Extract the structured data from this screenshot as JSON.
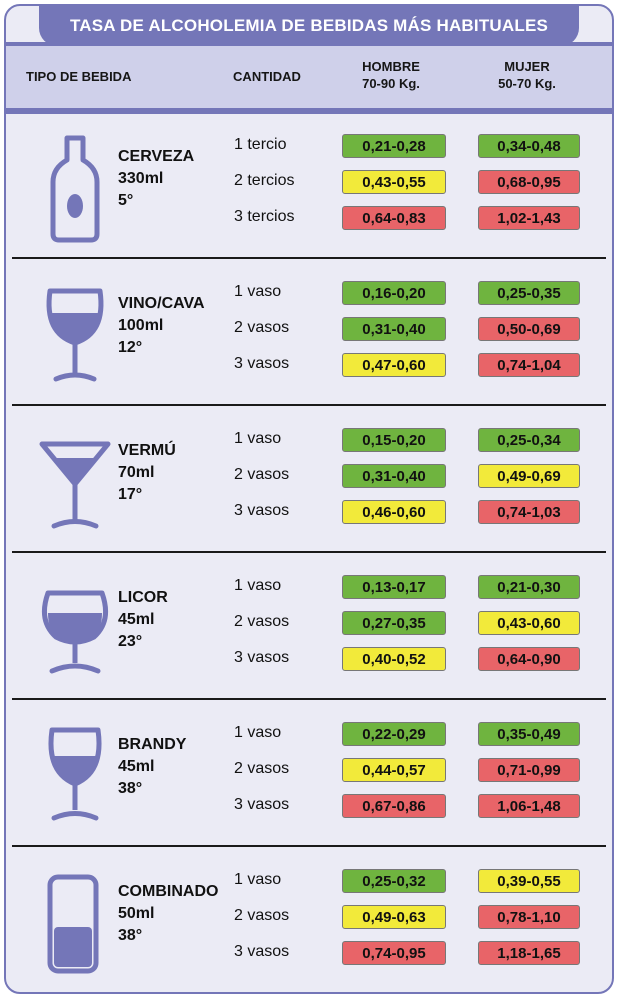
{
  "title": "TASA DE ALCOHOLEMIA DE BEBIDAS MÁS HABITUALES",
  "header": {
    "tipo": "TIPO DE BEBIDA",
    "cantidad": "CANTIDAD",
    "hombre_l1": "HOMBRE",
    "hombre_l2": "70-90 Kg.",
    "mujer_l1": "MUJER",
    "mujer_l2": "50-70 Kg."
  },
  "colors": {
    "green": "#6fb43f",
    "yellow": "#f2ea3a",
    "red": "#e86468",
    "accent": "#7476b8"
  },
  "drinks": [
    {
      "name": "CERVEZA",
      "volume": "330ml",
      "degree": "5°",
      "icon": "beer-bottle-icon",
      "rows": [
        {
          "qty": "1 tercio",
          "hombre": "0,21-0,28",
          "hombre_color": "green",
          "mujer": "0,34-0,48",
          "mujer_color": "green"
        },
        {
          "qty": "2 tercios",
          "hombre": "0,43-0,55",
          "hombre_color": "yellow",
          "mujer": "0,68-0,95",
          "mujer_color": "red"
        },
        {
          "qty": "3 tercios",
          "hombre": "0,64-0,83",
          "hombre_color": "red",
          "mujer": "1,02-1,43",
          "mujer_color": "red"
        }
      ]
    },
    {
      "name": "VINO/CAVA",
      "volume": "100ml",
      "degree": "12°",
      "icon": "wine-glass-icon",
      "rows": [
        {
          "qty": "1 vaso",
          "hombre": "0,16-0,20",
          "hombre_color": "green",
          "mujer": "0,25-0,35",
          "mujer_color": "green"
        },
        {
          "qty": "2 vasos",
          "hombre": "0,31-0,40",
          "hombre_color": "green",
          "mujer": "0,50-0,69",
          "mujer_color": "red"
        },
        {
          "qty": "3 vasos",
          "hombre": "0,47-0,60",
          "hombre_color": "yellow",
          "mujer": "0,74-1,04",
          "mujer_color": "red"
        }
      ]
    },
    {
      "name": "VERMÚ",
      "volume": "70ml",
      "degree": "17°",
      "icon": "martini-glass-icon",
      "rows": [
        {
          "qty": "1 vaso",
          "hombre": "0,15-0,20",
          "hombre_color": "green",
          "mujer": "0,25-0,34",
          "mujer_color": "green"
        },
        {
          "qty": "2 vasos",
          "hombre": "0,31-0,40",
          "hombre_color": "green",
          "mujer": "0,49-0,69",
          "mujer_color": "yellow"
        },
        {
          "qty": "3 vasos",
          "hombre": "0,46-0,60",
          "hombre_color": "yellow",
          "mujer": "0,74-1,03",
          "mujer_color": "red"
        }
      ]
    },
    {
      "name": "LICOR",
      "volume": "45ml",
      "degree": "23°",
      "icon": "liqueur-glass-icon",
      "rows": [
        {
          "qty": "1 vaso",
          "hombre": "0,13-0,17",
          "hombre_color": "green",
          "mujer": "0,21-0,30",
          "mujer_color": "green"
        },
        {
          "qty": "2 vasos",
          "hombre": "0,27-0,35",
          "hombre_color": "green",
          "mujer": "0,43-0,60",
          "mujer_color": "yellow"
        },
        {
          "qty": "3 vasos",
          "hombre": "0,40-0,52",
          "hombre_color": "yellow",
          "mujer": "0,64-0,90",
          "mujer_color": "red"
        }
      ]
    },
    {
      "name": "BRANDY",
      "volume": "45ml",
      "degree": "38°",
      "icon": "brandy-glass-icon",
      "rows": [
        {
          "qty": "1 vaso",
          "hombre": "0,22-0,29",
          "hombre_color": "green",
          "mujer": "0,35-0,49",
          "mujer_color": "green"
        },
        {
          "qty": "2 vasos",
          "hombre": "0,44-0,57",
          "hombre_color": "yellow",
          "mujer": "0,71-0,99",
          "mujer_color": "red"
        },
        {
          "qty": "3 vasos",
          "hombre": "0,67-0,86",
          "hombre_color": "red",
          "mujer": "1,06-1,48",
          "mujer_color": "red"
        }
      ]
    },
    {
      "name": "COMBINADO",
      "volume": "50ml",
      "degree": "38°",
      "icon": "highball-glass-icon",
      "rows": [
        {
          "qty": "1 vaso",
          "hombre": "0,25-0,32",
          "hombre_color": "green",
          "mujer": "0,39-0,55",
          "mujer_color": "yellow"
        },
        {
          "qty": "2 vasos",
          "hombre": "0,49-0,63",
          "hombre_color": "yellow",
          "mujer": "0,78-1,10",
          "mujer_color": "red"
        },
        {
          "qty": "3 vasos",
          "hombre": "0,74-0,95",
          "hombre_color": "red",
          "mujer": "1,18-1,65",
          "mujer_color": "red"
        }
      ]
    }
  ]
}
